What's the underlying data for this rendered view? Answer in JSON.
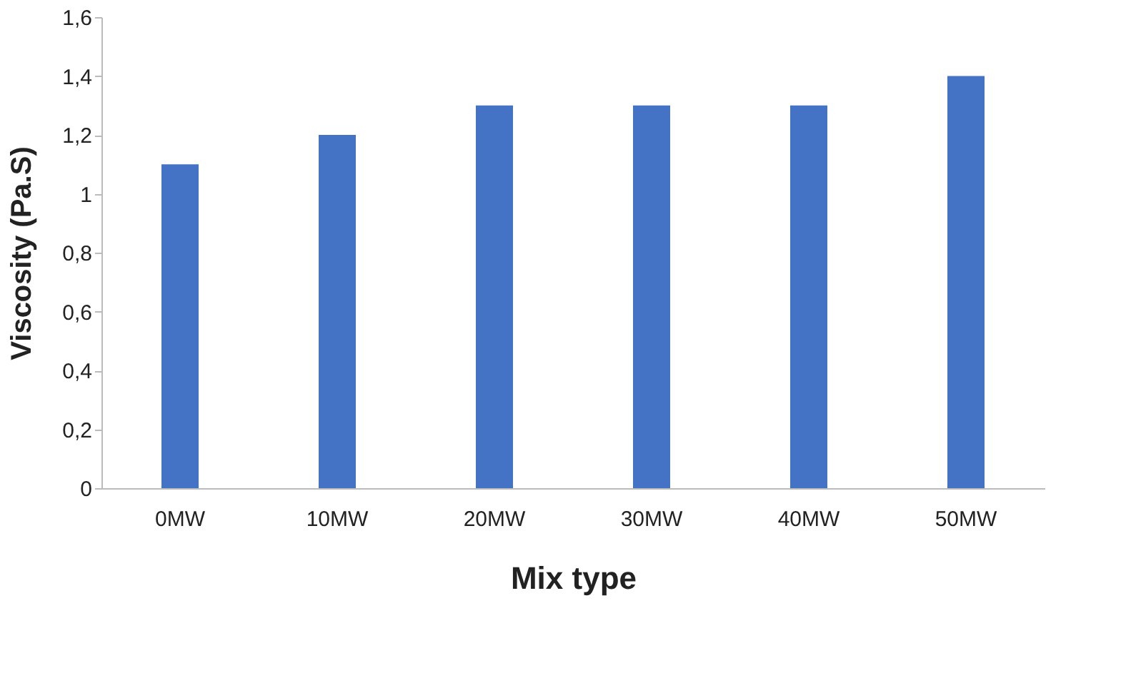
{
  "chart_data": {
    "type": "bar",
    "xlabel": "Mix type",
    "ylabel": "Viscosity  (Pa.S)",
    "categories": [
      "0MW",
      "10MW",
      "20MW",
      "30MW",
      "40MW",
      "50MW"
    ],
    "values": [
      1.1,
      1.2,
      1.3,
      1.3,
      1.3,
      1.4
    ],
    "color": "#4472c4",
    "ylim": [
      0,
      1.6
    ],
    "yticks": [
      0,
      {
        "value": 0.2,
        "label": "0,2"
      },
      {
        "value": 0.4,
        "label": "0,4"
      },
      {
        "value": 0.6,
        "label": "0,6"
      },
      {
        "value": 0.8,
        "label": "0,8"
      },
      1,
      {
        "value": 1.2,
        "label": "1,2"
      },
      {
        "value": 1.4,
        "label": "1,4"
      },
      {
        "value": 1.6,
        "label": "1,6"
      }
    ],
    "grid": false
  }
}
